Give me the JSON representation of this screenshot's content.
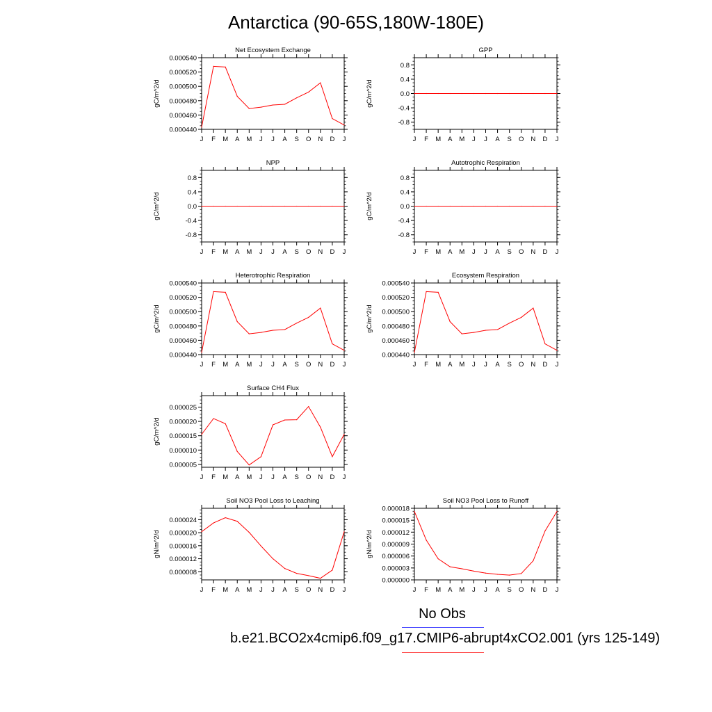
{
  "title": "Antarctica (90-65S,180W-180E)",
  "legend": {
    "obs_label": "No Obs",
    "case_label": "b.e21.BCO2x4cmip6.f09_g17.CMIP6-abrupt4xCO2.001 (yrs 125-149)",
    "obs_color": "#4b4bff",
    "case_color": "#ff4b4b"
  },
  "chart_data": [
    {
      "type": "line",
      "title": "Net Ecosystem Exchange",
      "ylabel": "gC/m^2/d",
      "xlabel": "",
      "categories": [
        "J",
        "F",
        "M",
        "A",
        "M",
        "J",
        "J",
        "A",
        "S",
        "O",
        "N",
        "D",
        "J"
      ],
      "ylim": [
        0.00044,
        0.00054
      ],
      "yticks": [
        "0.000440",
        "0.000460",
        "0.000480",
        "0.000500",
        "0.000520",
        "0.000540"
      ],
      "series": [
        {
          "color": "#ff0000",
          "values": [
            0.000443,
            0.000528,
            0.000527,
            0.000486,
            0.000469,
            0.000471,
            0.000474,
            0.000475,
            0.000484,
            0.000492,
            0.000505,
            0.000455,
            0.000446
          ]
        }
      ]
    },
    {
      "type": "line",
      "title": "GPP",
      "ylabel": "gC/m^2/d",
      "xlabel": "",
      "categories": [
        "J",
        "F",
        "M",
        "A",
        "M",
        "J",
        "J",
        "A",
        "S",
        "O",
        "N",
        "D",
        "J"
      ],
      "ylim": [
        -1.0,
        1.0
      ],
      "yticks": [
        "-0.8",
        "-0.4",
        "0.0",
        "0.4",
        "0.8"
      ],
      "series": [
        {
          "color": "#ff0000",
          "values": [
            0,
            0,
            0,
            0,
            0,
            0,
            0,
            0,
            0,
            0,
            0,
            0,
            0
          ]
        }
      ]
    },
    {
      "type": "line",
      "title": "NPP",
      "ylabel": "gC/m^2/d",
      "xlabel": "",
      "categories": [
        "J",
        "F",
        "M",
        "A",
        "M",
        "J",
        "J",
        "A",
        "S",
        "O",
        "N",
        "D",
        "J"
      ],
      "ylim": [
        -1.0,
        1.0
      ],
      "yticks": [
        "-0.8",
        "-0.4",
        "0.0",
        "0.4",
        "0.8"
      ],
      "series": [
        {
          "color": "#ff0000",
          "values": [
            0,
            0,
            0,
            0,
            0,
            0,
            0,
            0,
            0,
            0,
            0,
            0,
            0
          ]
        }
      ]
    },
    {
      "type": "line",
      "title": "Autotrophic Respiration",
      "ylabel": "gC/m^2/d",
      "xlabel": "",
      "categories": [
        "J",
        "F",
        "M",
        "A",
        "M",
        "J",
        "J",
        "A",
        "S",
        "O",
        "N",
        "D",
        "J"
      ],
      "ylim": [
        -1.0,
        1.0
      ],
      "yticks": [
        "-0.8",
        "-0.4",
        "0.0",
        "0.4",
        "0.8"
      ],
      "series": [
        {
          "color": "#ff0000",
          "values": [
            0,
            0,
            0,
            0,
            0,
            0,
            0,
            0,
            0,
            0,
            0,
            0,
            0
          ]
        }
      ]
    },
    {
      "type": "line",
      "title": "Heterotrophic Respiration",
      "ylabel": "gC/m^2/d",
      "xlabel": "",
      "categories": [
        "J",
        "F",
        "M",
        "A",
        "M",
        "J",
        "J",
        "A",
        "S",
        "O",
        "N",
        "D",
        "J"
      ],
      "ylim": [
        0.00044,
        0.00054
      ],
      "yticks": [
        "0.000440",
        "0.000460",
        "0.000480",
        "0.000500",
        "0.000520",
        "0.000540"
      ],
      "series": [
        {
          "color": "#ff0000",
          "values": [
            0.000443,
            0.000528,
            0.000527,
            0.000486,
            0.000469,
            0.000471,
            0.000474,
            0.000475,
            0.000484,
            0.000492,
            0.000505,
            0.000455,
            0.000446
          ]
        }
      ]
    },
    {
      "type": "line",
      "title": "Ecosystem Respiration",
      "ylabel": "gC/m^2/d",
      "xlabel": "",
      "categories": [
        "J",
        "F",
        "M",
        "A",
        "M",
        "J",
        "J",
        "A",
        "S",
        "O",
        "N",
        "D",
        "J"
      ],
      "ylim": [
        0.00044,
        0.00054
      ],
      "yticks": [
        "0.000440",
        "0.000460",
        "0.000480",
        "0.000500",
        "0.000520",
        "0.000540"
      ],
      "series": [
        {
          "color": "#ff0000",
          "values": [
            0.000443,
            0.000528,
            0.000527,
            0.000486,
            0.000469,
            0.000471,
            0.000474,
            0.000475,
            0.000484,
            0.000492,
            0.000505,
            0.000455,
            0.000446
          ]
        }
      ]
    },
    {
      "type": "line",
      "title": "Surface CH4 Flux",
      "ylabel": "gC/m^2/d",
      "xlabel": "",
      "categories": [
        "J",
        "F",
        "M",
        "A",
        "M",
        "J",
        "J",
        "A",
        "S",
        "O",
        "N",
        "D",
        "J"
      ],
      "ylim": [
        4e-06,
        2.9e-05
      ],
      "yticks": [
        "0.000005",
        "0.000010",
        "0.000015",
        "0.000020",
        "0.000025"
      ],
      "series": [
        {
          "color": "#ff0000",
          "values": [
            1.55e-05,
            2.1e-05,
            1.92e-05,
            9.5e-06,
            4.8e-06,
            7.7e-06,
            1.88e-05,
            2.05e-05,
            2.06e-05,
            2.52e-05,
            1.8e-05,
            7.7e-06,
            1.55e-05
          ]
        }
      ]
    },
    {
      "type": "line",
      "title": "Soil NO3 Pool Loss to Leaching",
      "ylabel": "gN/m^2/d",
      "xlabel": "",
      "categories": [
        "J",
        "F",
        "M",
        "A",
        "M",
        "J",
        "J",
        "A",
        "S",
        "O",
        "N",
        "D",
        "J"
      ],
      "ylim": [
        5.5e-06,
        2.75e-05
      ],
      "yticks": [
        "0.000008",
        "0.000012",
        "0.000016",
        "0.000020",
        "0.000024"
      ],
      "series": [
        {
          "color": "#ff0000",
          "values": [
            2.03e-05,
            2.3e-05,
            2.46e-05,
            2.35e-05,
            2.01e-05,
            1.59e-05,
            1.2e-05,
            9e-06,
            7.5e-06,
            6.8e-06,
            6e-06,
            8.5e-06,
            2.03e-05
          ]
        }
      ]
    },
    {
      "type": "line",
      "title": "Soil NO3 Pool Loss to Runoff",
      "ylabel": "gN/m^2/d",
      "xlabel": "",
      "categories": [
        "J",
        "F",
        "M",
        "A",
        "M",
        "J",
        "J",
        "A",
        "S",
        "O",
        "N",
        "D",
        "J"
      ],
      "ylim": [
        0.0,
        1.8e-05
      ],
      "yticks": [
        "0.000000",
        "0.000003",
        "0.000006",
        "0.000009",
        "0.000012",
        "0.000015",
        "0.000018"
      ],
      "series": [
        {
          "color": "#ff0000",
          "values": [
            1.72e-05,
            1e-05,
            5.3e-06,
            3.3e-06,
            2.8e-06,
            2.2e-06,
            1.7e-06,
            1.4e-06,
            1.2e-06,
            1.6e-06,
            4.8e-06,
            1.23e-05,
            1.72e-05
          ]
        }
      ]
    }
  ]
}
